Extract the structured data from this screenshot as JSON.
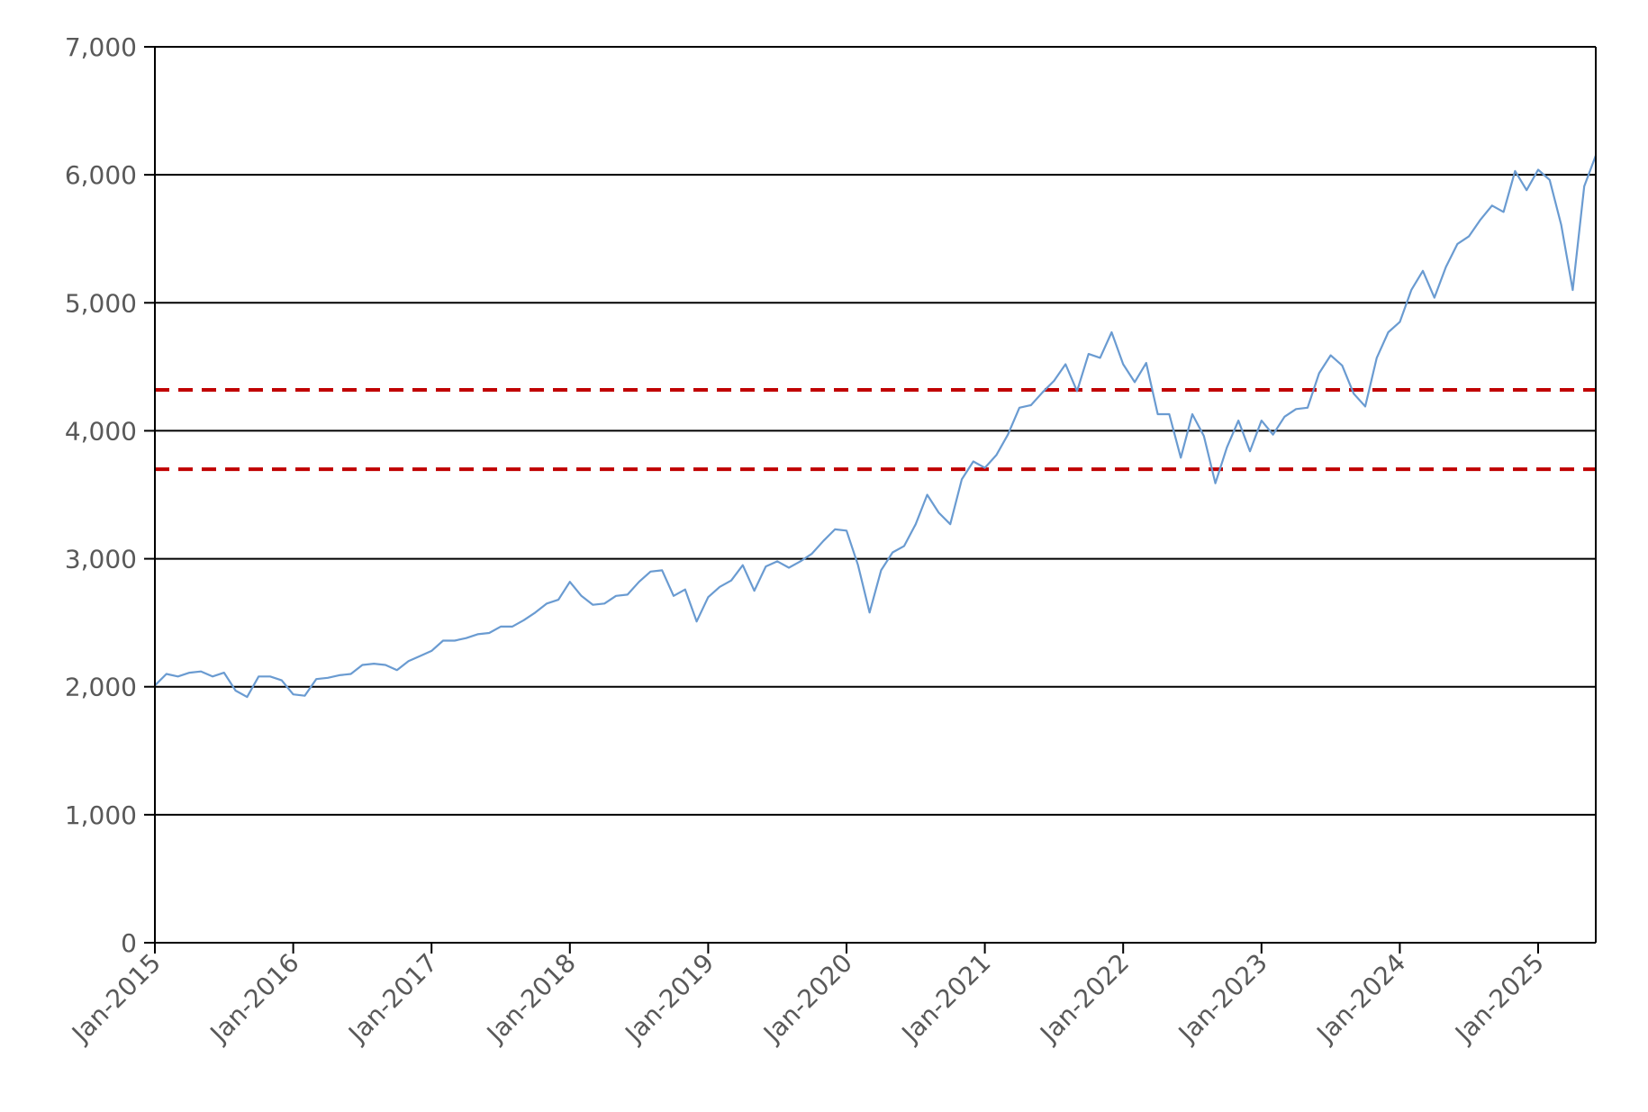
{
  "chart_data": {
    "type": "line",
    "title": "",
    "xlabel": "",
    "ylabel": "",
    "ylim": [
      0,
      7000
    ],
    "xlim": [
      "2015-01",
      "2025-06"
    ],
    "grid": "horizontal",
    "legend": "none",
    "y_ticks": [
      0,
      1000,
      2000,
      3000,
      4000,
      5000,
      6000,
      7000
    ],
    "y_tick_labels": [
      "0",
      "1,000",
      "2,000",
      "3,000",
      "4,000",
      "5,000",
      "6,000",
      "7,000"
    ],
    "x_ticks": [
      "2015-01",
      "2016-01",
      "2017-01",
      "2018-01",
      "2019-01",
      "2020-01",
      "2021-01",
      "2022-01",
      "2023-01",
      "2024-01",
      "2025-01"
    ],
    "x_tick_labels": [
      "Jan-2015",
      "Jan-2016",
      "Jan-2017",
      "Jan-2018",
      "Jan-2019",
      "Jan-2020",
      "Jan-2021",
      "Jan-2022",
      "Jan-2023",
      "Jan-2024",
      "Jan-2025"
    ],
    "reference_lines": [
      {
        "y": 4320,
        "style": "dashed",
        "color": "#C00000"
      },
      {
        "y": 3700,
        "style": "dashed",
        "color": "#C00000"
      }
    ],
    "series": [
      {
        "color": "#6A9BD1",
        "x": [
          "2015-01",
          "2015-02",
          "2015-03",
          "2015-04",
          "2015-05",
          "2015-06",
          "2015-07",
          "2015-08",
          "2015-09",
          "2015-10",
          "2015-11",
          "2015-12",
          "2016-01",
          "2016-02",
          "2016-03",
          "2016-04",
          "2016-05",
          "2016-06",
          "2016-07",
          "2016-08",
          "2016-09",
          "2016-10",
          "2016-11",
          "2016-12",
          "2017-01",
          "2017-02",
          "2017-03",
          "2017-04",
          "2017-05",
          "2017-06",
          "2017-07",
          "2017-08",
          "2017-09",
          "2017-10",
          "2017-11",
          "2017-12",
          "2018-01",
          "2018-02",
          "2018-03",
          "2018-04",
          "2018-05",
          "2018-06",
          "2018-07",
          "2018-08",
          "2018-09",
          "2018-10",
          "2018-11",
          "2018-12",
          "2019-01",
          "2019-02",
          "2019-03",
          "2019-04",
          "2019-05",
          "2019-06",
          "2019-07",
          "2019-08",
          "2019-09",
          "2019-10",
          "2019-11",
          "2019-12",
          "2020-01",
          "2020-02",
          "2020-03",
          "2020-04",
          "2020-05",
          "2020-06",
          "2020-07",
          "2020-08",
          "2020-09",
          "2020-10",
          "2020-11",
          "2020-12",
          "2021-01",
          "2021-02",
          "2021-03",
          "2021-04",
          "2021-05",
          "2021-06",
          "2021-07",
          "2021-08",
          "2021-09",
          "2021-10",
          "2021-11",
          "2021-12",
          "2022-01",
          "2022-02",
          "2022-03",
          "2022-04",
          "2022-05",
          "2022-06",
          "2022-07",
          "2022-08",
          "2022-09",
          "2022-10",
          "2022-11",
          "2022-12",
          "2023-01",
          "2023-02",
          "2023-03",
          "2023-04",
          "2023-05",
          "2023-06",
          "2023-07",
          "2023-08",
          "2023-09",
          "2023-10",
          "2023-11",
          "2023-12",
          "2024-01",
          "2024-02",
          "2024-03",
          "2024-04",
          "2024-05",
          "2024-06",
          "2024-07",
          "2024-08",
          "2024-09",
          "2024-10",
          "2024-11",
          "2024-12",
          "2025-01",
          "2025-02",
          "2025-03",
          "2025-04",
          "2025-05",
          "2025-06"
        ],
        "values": [
          2010,
          2100,
          2080,
          2110,
          2120,
          2080,
          2110,
          1970,
          1920,
          2080,
          2080,
          2050,
          1940,
          1930,
          2060,
          2070,
          2090,
          2100,
          2170,
          2180,
          2170,
          2130,
          2200,
          2240,
          2280,
          2360,
          2360,
          2380,
          2410,
          2420,
          2470,
          2470,
          2520,
          2580,
          2650,
          2680,
          2820,
          2710,
          2640,
          2650,
          2710,
          2720,
          2820,
          2900,
          2910,
          2710,
          2760,
          2510,
          2700,
          2780,
          2830,
          2950,
          2750,
          2940,
          2980,
          2930,
          2980,
          3040,
          3140,
          3230,
          3220,
          2950,
          2580,
          2910,
          3050,
          3100,
          3270,
          3500,
          3360,
          3270,
          3620,
          3760,
          3710,
          3810,
          3970,
          4180,
          4200,
          4300,
          4390,
          4520,
          4310,
          4600,
          4570,
          4770,
          4520,
          4380,
          4530,
          4130,
          4130,
          3790,
          4130,
          3960,
          3590,
          3870,
          4080,
          3840,
          4080,
          3970,
          4110,
          4170,
          4180,
          4450,
          4590,
          4510,
          4290,
          4190,
          4570,
          4770,
          4850,
          5100,
          5250,
          5040,
          5280,
          5460,
          5520,
          5650,
          5760,
          5710,
          6030,
          5880,
          6040,
          5960,
          5610,
          5100,
          5910,
          6150
        ]
      }
    ]
  }
}
